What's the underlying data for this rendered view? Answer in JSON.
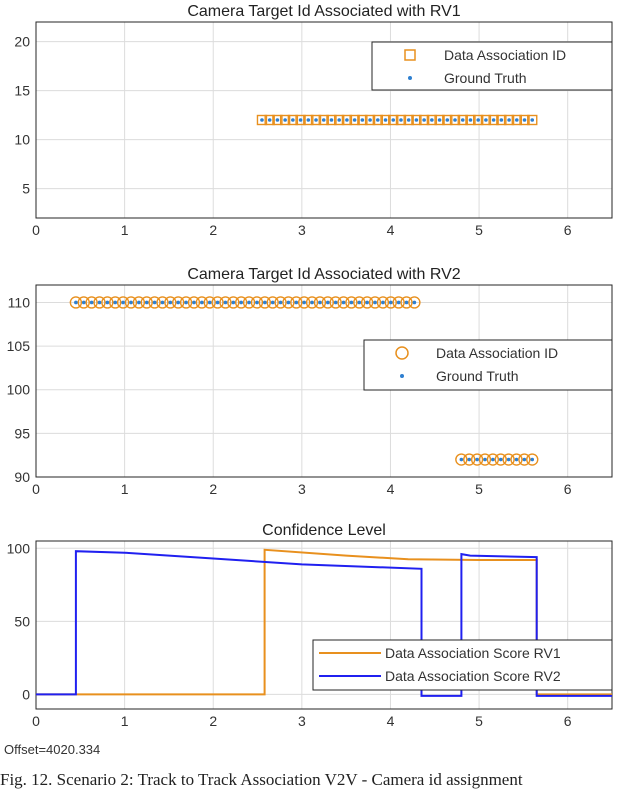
{
  "chart_data": [
    {
      "type": "scatter",
      "title": "Camera Target Id Associated with RV1",
      "xlim": [
        0,
        6.5
      ],
      "ylim": [
        2,
        22
      ],
      "xticks": [
        "0",
        "1",
        "2",
        "3",
        "4",
        "5",
        "6"
      ],
      "yticks": [
        "5",
        "10",
        "15",
        "20"
      ],
      "grid": true,
      "legend_position": "top-right",
      "series": [
        {
          "name": "Data Association ID",
          "marker": "square",
          "color": "#E8901E",
          "x_start": 2.55,
          "x_end": 5.6,
          "count": 36,
          "y": 12
        },
        {
          "name": "Ground Truth",
          "marker": "dot",
          "color": "#2E7FD0",
          "x_start": 2.55,
          "x_end": 5.6,
          "count": 36,
          "y": 12
        }
      ]
    },
    {
      "type": "scatter",
      "title": "Camera Target Id Associated with RV2",
      "xlim": [
        0,
        6.5
      ],
      "ylim": [
        90,
        112
      ],
      "xticks": [
        "0",
        "1",
        "2",
        "3",
        "4",
        "5",
        "6"
      ],
      "yticks": [
        "90",
        "95",
        "100",
        "105",
        "110"
      ],
      "grid": true,
      "legend_position": "center-right",
      "series": [
        {
          "name": "Data Association ID",
          "marker": "circle",
          "color": "#E8901E",
          "segments": [
            {
              "x_start": 0.45,
              "x_end": 4.27,
              "count": 44,
              "y": 110
            },
            {
              "x_start": 4.8,
              "x_end": 5.6,
              "count": 10,
              "y": 92
            }
          ]
        },
        {
          "name": "Ground Truth",
          "marker": "dot",
          "color": "#2E7FD0",
          "segments": [
            {
              "x_start": 0.45,
              "x_end": 4.27,
              "count": 44,
              "y": 110
            },
            {
              "x_start": 4.8,
              "x_end": 5.6,
              "count": 10,
              "y": 92
            }
          ]
        }
      ]
    },
    {
      "type": "line",
      "title": "Confidence Level",
      "xlim": [
        0,
        6.5
      ],
      "ylim": [
        -10,
        105
      ],
      "xticks": [
        "0",
        "1",
        "2",
        "3",
        "4",
        "5",
        "6"
      ],
      "yticks": [
        "0",
        "50",
        "100"
      ],
      "grid": true,
      "legend_position": "bottom-right",
      "offset_label": "Offset=4020.334",
      "series": [
        {
          "name": "Data Association Score RV1",
          "color": "#E8901E",
          "x": [
            0,
            2.58,
            2.58,
            3.5,
            4.2,
            5.0,
            5.65,
            5.65,
            6.5
          ],
          "y": [
            0,
            0,
            99,
            95,
            92.5,
            92,
            92,
            0,
            0
          ]
        },
        {
          "name": "Data Association Score RV2",
          "color": "#2020F0",
          "x": [
            0,
            0.45,
            0.45,
            1.0,
            2.0,
            3.0,
            4.35,
            4.35,
            4.8,
            4.8,
            4.9,
            5.65,
            5.65,
            6.5
          ],
          "y": [
            0,
            0,
            98,
            97,
            93,
            89,
            86,
            -1,
            -1,
            96,
            95,
            94,
            -1,
            -1
          ]
        }
      ]
    }
  ],
  "caption": "Fig. 12.  Scenario 2: Track to Track Association V2V - Camera id assignment"
}
